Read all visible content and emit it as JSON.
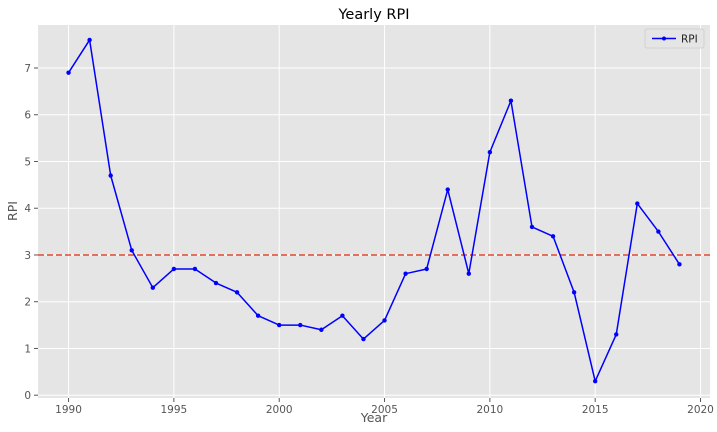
{
  "chart_data": {
    "type": "line",
    "title": "Yearly RPI",
    "xlabel": "Year",
    "ylabel": "RPI",
    "xlim": [
      1988.55,
      2020.45
    ],
    "ylim": [
      -0.06,
      7.92
    ],
    "x_ticks": [
      1990,
      1995,
      2000,
      2005,
      2010,
      2015,
      2020
    ],
    "y_ticks": [
      0,
      1,
      2,
      3,
      4,
      5,
      6,
      7
    ],
    "grid": true,
    "legend": "top-right",
    "series": [
      {
        "name": "RPI",
        "color": "#0000ff",
        "marker": "dot",
        "x": [
          1990,
          1991,
          1992,
          1993,
          1994,
          1995,
          1996,
          1997,
          1998,
          1999,
          2000,
          2001,
          2002,
          2003,
          2004,
          2005,
          2006,
          2007,
          2008,
          2009,
          2010,
          2011,
          2012,
          2013,
          2014,
          2015,
          2016,
          2017,
          2018,
          2019
        ],
        "values": [
          6.9,
          7.6,
          4.7,
          3.1,
          2.3,
          2.7,
          2.7,
          2.4,
          2.2,
          1.7,
          1.5,
          1.5,
          1.4,
          1.7,
          1.2,
          1.6,
          2.6,
          2.7,
          4.4,
          2.6,
          5.2,
          6.3,
          3.6,
          3.4,
          2.2,
          0.3,
          1.3,
          4.1,
          3.5,
          2.8
        ]
      }
    ],
    "reference_line": {
      "y": 3.0,
      "style": "dashed",
      "color": "#e24a33"
    }
  },
  "colors": {
    "plot_background": "#e5e5e5",
    "grid": "#ffffff",
    "series": "#0000ff",
    "reference": "#e24a33"
  }
}
